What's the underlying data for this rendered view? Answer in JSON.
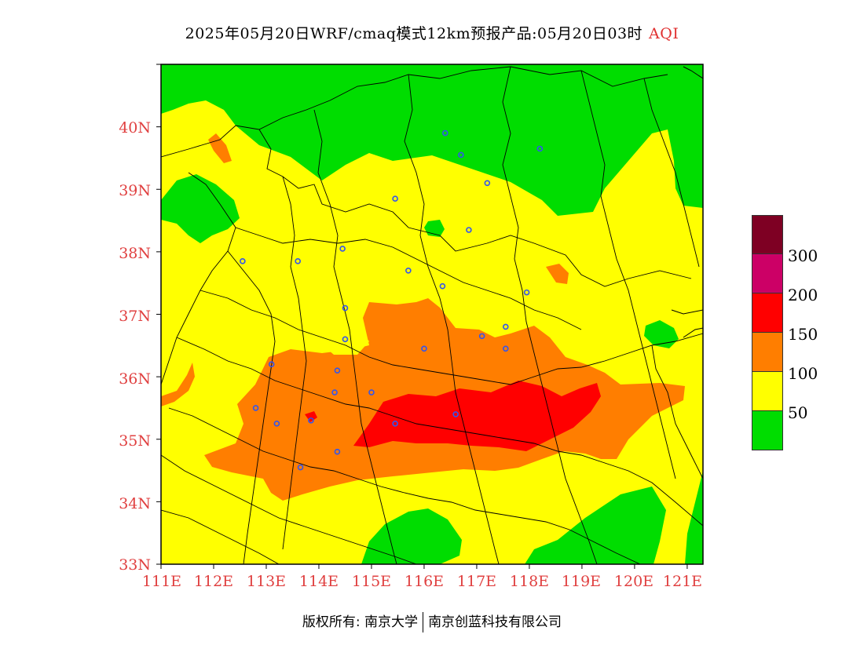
{
  "title": {
    "main": "2025年05月20日WRF/cmaq模式12km预报产品:05月20日03时",
    "variable": "AQI"
  },
  "map": {
    "lat_labels": [
      "40N",
      "39N",
      "38N",
      "37N",
      "36N",
      "35N",
      "34N",
      "33N"
    ],
    "lon_labels": [
      "111E",
      "112E",
      "113E",
      "114E",
      "115E",
      "116E",
      "117E",
      "118E",
      "119E",
      "120E",
      "121E"
    ],
    "lat_range": [
      33,
      41
    ],
    "lon_range": [
      111,
      121.3
    ],
    "colors": {
      "good": "#00dd00",
      "moderate": "#ffff00",
      "usg": "#ff7e00",
      "unhealthy": "#ff0000",
      "very_unhealthy": "#cc0066",
      "hazardous": "#7e0023",
      "label": "#e04040",
      "station": "#3355ee"
    }
  },
  "legend": {
    "levels": [
      {
        "color": "#7e0023"
      },
      {
        "color": "#cc0066"
      },
      {
        "color": "#ff0000"
      },
      {
        "color": "#ff7e00"
      },
      {
        "color": "#ffff00"
      },
      {
        "color": "#00dd00"
      }
    ],
    "labels": [
      "300",
      "200",
      "150",
      "100",
      "50"
    ]
  },
  "footer": {
    "left": "版权所有: 南京大学",
    "right": "南京创蓝科技有限公司"
  }
}
